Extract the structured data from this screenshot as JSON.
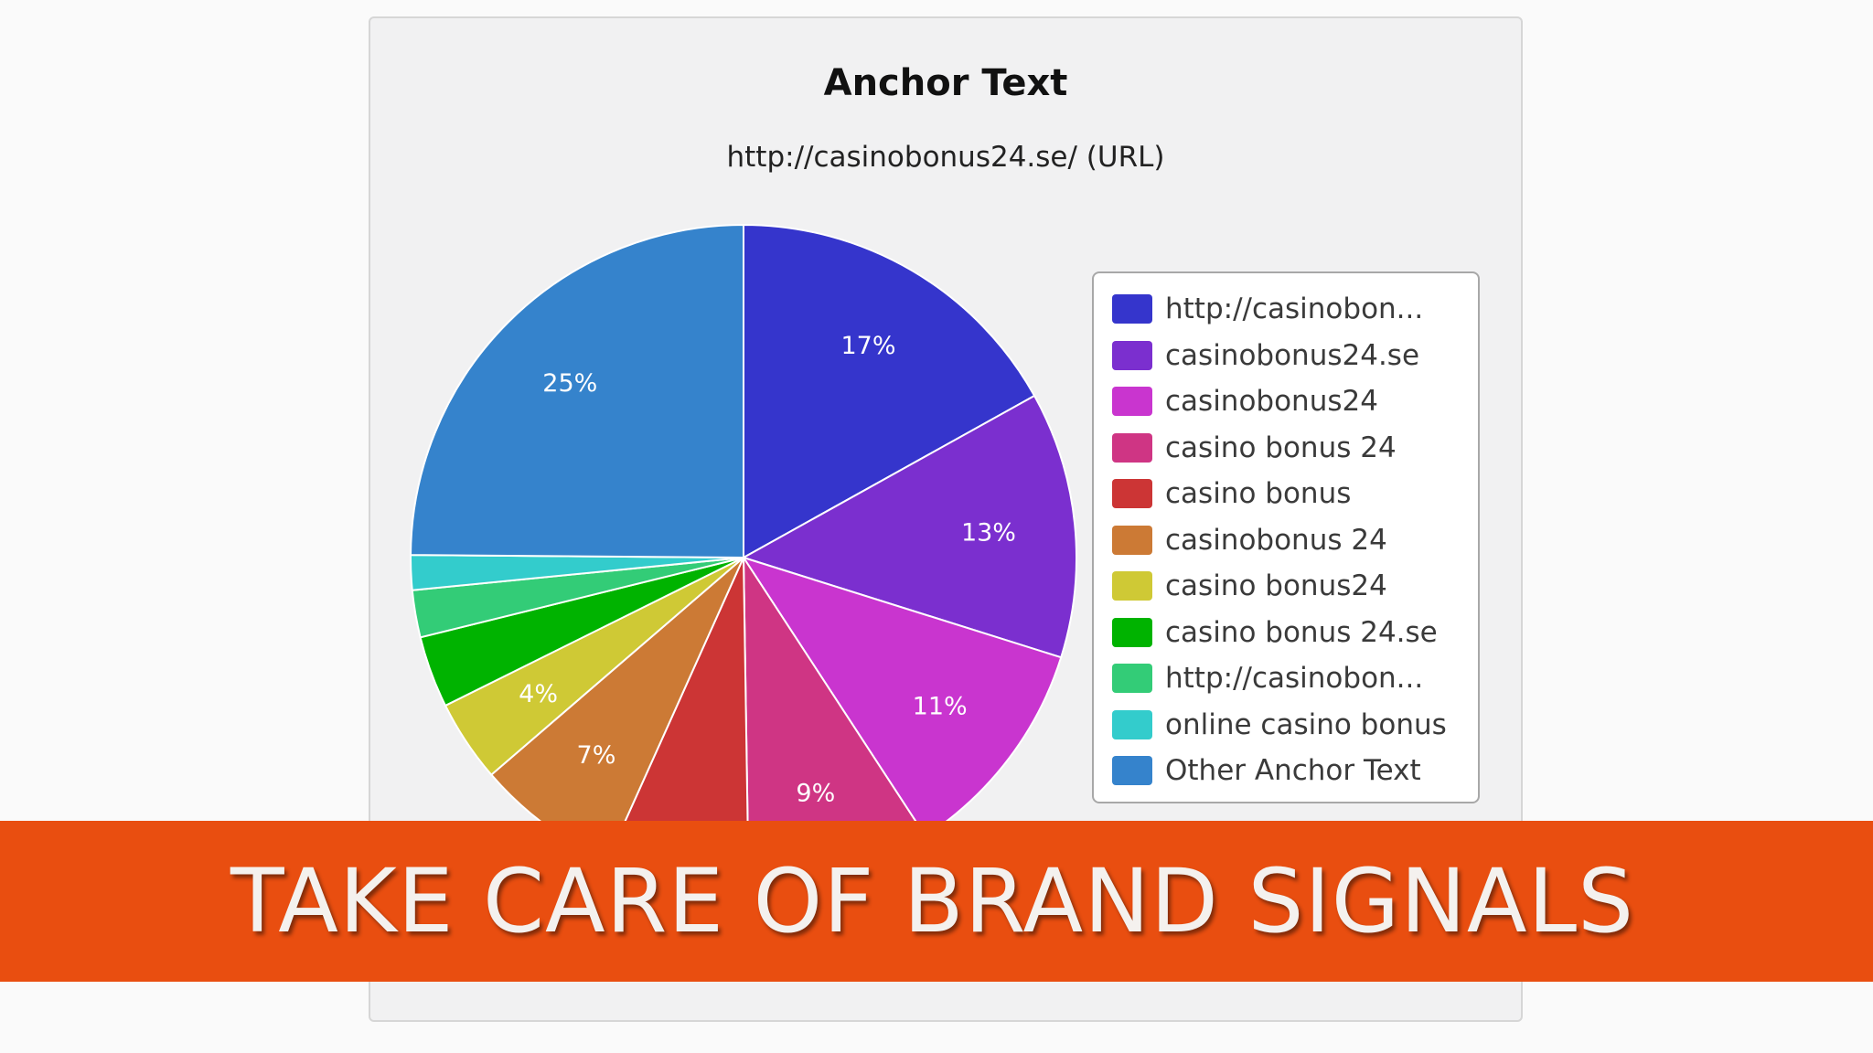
{
  "chart_data": {
    "type": "pie",
    "title": "Anchor Text",
    "subtitle": "http://casinobonus24.se/ (URL)",
    "slices": [
      {
        "label": "http://casinobon...",
        "value": 17,
        "color": "#3535cc",
        "data_label": "17%"
      },
      {
        "label": "casinobonus24.se",
        "value": 13,
        "color": "#7b2fcf",
        "data_label": "13%"
      },
      {
        "label": "casinobonus24",
        "value": 11,
        "color": "#c935cf",
        "data_label": "11%"
      },
      {
        "label": "casino bonus 24",
        "value": 9,
        "color": "#cf3584",
        "data_label": "9%"
      },
      {
        "label": "casino bonus",
        "value": 7,
        "color": "#cc3535",
        "data_label": ""
      },
      {
        "label": "casinobonus 24",
        "value": 7,
        "color": "#cc7a35",
        "data_label": "7%"
      },
      {
        "label": "casino bonus24",
        "value": 4,
        "color": "#cfc935",
        "data_label": "4%"
      },
      {
        "label": "casino bonus 24.se",
        "value": 3.5,
        "color": "#00b300",
        "data_label": ""
      },
      {
        "label": "http://casinobon...",
        "value": 2.3,
        "color": "#33cc77",
        "data_label": ""
      },
      {
        "label": "online casino bonus",
        "value": 1.7,
        "color": "#33cccc",
        "data_label": ""
      },
      {
        "label": "Other Anchor Text",
        "value": 25,
        "color": "#3583cc",
        "data_label": "25%"
      }
    ],
    "legend_position": "right"
  },
  "banner": {
    "text": "TAKE CARE OF BRAND SIGNALS",
    "color": "#e94e10"
  }
}
